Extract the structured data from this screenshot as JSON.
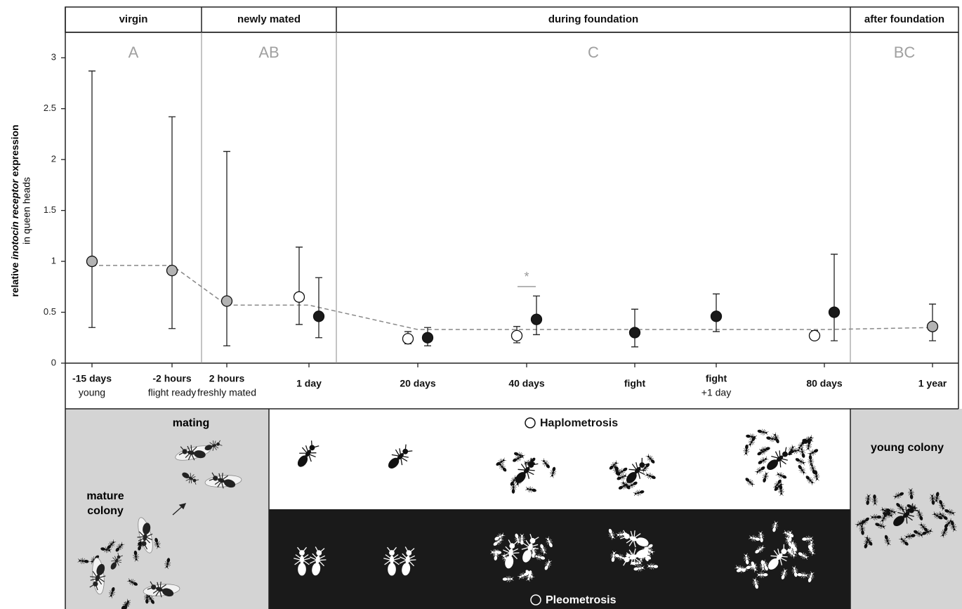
{
  "chart_data": {
    "type": "errorbar",
    "y_label": {
      "prefix": "relative ",
      "italic": "inotocin receptor",
      "suffix": " expression",
      "line2": "in queen heads"
    },
    "sections": [
      {
        "name": "virgin",
        "group": "A"
      },
      {
        "name": "newly mated",
        "group": "AB"
      },
      {
        "name": "during foundation",
        "group": "C"
      },
      {
        "name": "after foundation",
        "group": "BC"
      }
    ],
    "categories": [
      "-15 days",
      "-2 hours",
      "2 hours",
      "1 day",
      "20 days",
      "40 days",
      "fight",
      "fight",
      "80 days",
      "1 year"
    ],
    "category_sublabels": [
      "young",
      "flight ready",
      "freshly mated",
      null,
      null,
      null,
      null,
      "+1 day",
      null,
      null
    ],
    "ylim": [
      0,
      3.25
    ],
    "yticks": [
      0,
      0.5,
      1,
      1.5,
      2,
      2.5,
      3
    ],
    "series": [
      {
        "color": "#b3b3b3",
        "values": [
          1.0,
          0.91,
          0.61,
          null,
          null,
          null,
          null,
          null,
          null,
          0.36
        ],
        "lower": [
          0.35,
          0.34,
          0.17,
          null,
          null,
          null,
          null,
          null,
          null,
          0.22
        ],
        "upper": [
          2.87,
          2.42,
          2.08,
          null,
          null,
          null,
          null,
          null,
          null,
          0.58
        ]
      },
      {
        "name": "Haplometrosis",
        "color": "#ffffff",
        "values": [
          null,
          null,
          null,
          0.65,
          0.24,
          0.27,
          null,
          null,
          0.27,
          null
        ],
        "lower": [
          null,
          null,
          null,
          0.38,
          0.19,
          0.2,
          null,
          null,
          0.23,
          null
        ],
        "upper": [
          null,
          null,
          null,
          1.14,
          0.31,
          0.36,
          null,
          null,
          0.32,
          null
        ]
      },
      {
        "name": "Pleometrosis",
        "color": "#1a1a1a",
        "values": [
          null,
          null,
          null,
          0.46,
          0.25,
          0.43,
          0.3,
          0.46,
          0.5,
          null
        ],
        "lower": [
          null,
          null,
          null,
          0.25,
          0.17,
          0.28,
          0.16,
          0.31,
          0.22,
          null
        ],
        "upper": [
          null,
          null,
          null,
          0.84,
          0.35,
          0.66,
          0.53,
          0.68,
          1.07,
          null
        ]
      }
    ],
    "trend": {
      "color": "#888888",
      "values": [
        0.96,
        0.96,
        0.57,
        0.57,
        0.33,
        0.33,
        0.33,
        0.33,
        0.33,
        0.35
      ]
    },
    "annotation": "*"
  },
  "illustration": {
    "mating": "mating",
    "mature_colony": [
      "mature",
      "colony"
    ],
    "young_colony": "young colony"
  }
}
